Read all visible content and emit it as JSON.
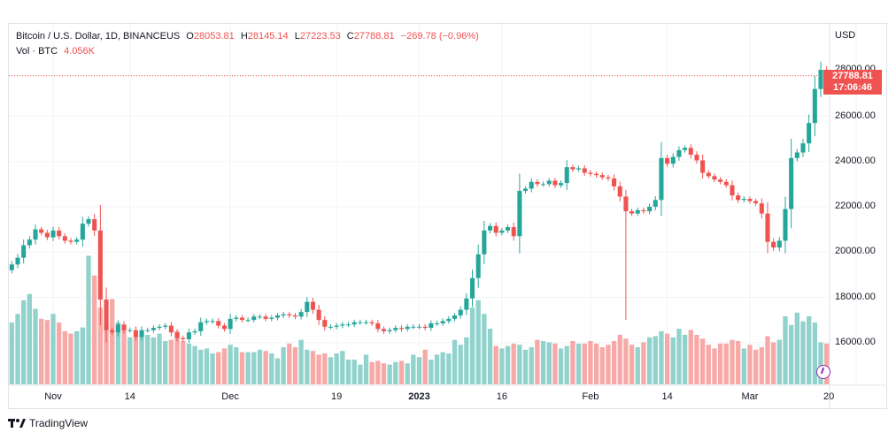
{
  "legend": {
    "symbol": "Bitcoin / U.S. Dollar, 1D, BINANCEUS",
    "open_label": "O",
    "open": "28053.81",
    "high_label": "H",
    "high": "28145.14",
    "low_label": "L",
    "low": "27223.53",
    "close_label": "C",
    "close": "27788.81",
    "change": "−269.78 (−0.96%)",
    "volume_label": "Vol · BTC",
    "volume": "4.056K"
  },
  "axis": {
    "currency": "USD"
  },
  "price_badge": {
    "price": "27788.81",
    "countdown": "17:06:46",
    "partially_hidden_label": "28000.00"
  },
  "footer": {
    "brand": "TradingView"
  },
  "colors": {
    "up": "#26a69a",
    "down": "#ef5350",
    "up_volume": "#92d2cc",
    "down_volume": "#f7a9a7",
    "grid": "#f0f3fa"
  },
  "chart_data": {
    "type": "candlestick",
    "title": "Bitcoin / U.S. Dollar, 1D, BINANCEUS",
    "ylabel": "USD",
    "ylim": [
      14000,
      29000
    ],
    "y_ticks": [
      "16000.00",
      "18000.00",
      "20000.00",
      "22000.00",
      "24000.00",
      "26000.00"
    ],
    "y_tick_values": [
      16000,
      18000,
      20000,
      22000,
      24000,
      26000
    ],
    "x_ticks": [
      "Nov",
      "14",
      "Dec",
      "19",
      "2023",
      "16",
      "Feb",
      "14",
      "Mar",
      "20"
    ],
    "x_tick_index": [
      7,
      20,
      37,
      55,
      69,
      83,
      98,
      111,
      125,
      143
    ],
    "x_tick_bold": [
      false,
      false,
      false,
      false,
      true,
      false,
      false,
      false,
      false,
      false
    ],
    "grid": true,
    "last_close": 27788.81,
    "close": [
      19450,
      19750,
      20300,
      20550,
      21000,
      20850,
      20650,
      20950,
      20700,
      20500,
      20450,
      20550,
      21250,
      21450,
      20950,
      17900,
      16550,
      16450,
      16800,
      16550,
      16550,
      16250,
      16550,
      16550,
      16650,
      16700,
      16750,
      16450,
      16200,
      16150,
      16450,
      16500,
      16900,
      16950,
      16950,
      16750,
      16600,
      17050,
      17100,
      17000,
      17000,
      17150,
      17150,
      17050,
      17100,
      17200,
      17250,
      17200,
      17150,
      17350,
      17800,
      17450,
      17000,
      16700,
      16700,
      16750,
      16800,
      16800,
      16900,
      16900,
      16900,
      16850,
      16600,
      16500,
      16550,
      16650,
      16600,
      16700,
      16700,
      16700,
      16650,
      16850,
      16850,
      16950,
      17050,
      17200,
      17450,
      17950,
      18850,
      19900,
      20950,
      21150,
      20850,
      20950,
      21100,
      20700,
      22700,
      22800,
      23100,
      23000,
      23000,
      23150,
      22950,
      23050,
      23750,
      23650,
      23700,
      23500,
      23450,
      23400,
      23300,
      23250,
      22900,
      22450,
      21800,
      21700,
      21850,
      21800,
      22000,
      22300,
      24150,
      23900,
      24200,
      24500,
      24600,
      24300,
      24050,
      23500,
      23350,
      23200,
      23100,
      22950,
      22500,
      22300,
      22350,
      22250,
      22150,
      21700,
      20450,
      20200,
      20500,
      21900,
      24150,
      24400,
      24800,
      25700,
      27200,
      28050,
      27788.81
    ],
    "volume": [
      250,
      285,
      340,
      365,
      305,
      265,
      260,
      285,
      250,
      215,
      205,
      215,
      230,
      520,
      440,
      310,
      245,
      345,
      250,
      230,
      190,
      195,
      200,
      200,
      190,
      205,
      175,
      180,
      215,
      175,
      165,
      155,
      140,
      145,
      125,
      130,
      145,
      160,
      150,
      130,
      130,
      130,
      140,
      135,
      125,
      105,
      150,
      165,
      150,
      180,
      140,
      135,
      120,
      125,
      110,
      125,
      135,
      100,
      100,
      80,
      120,
      90,
      95,
      85,
      80,
      90,
      95,
      85,
      120,
      110,
      140,
      100,
      120,
      130,
      125,
      180,
      160,
      190,
      310,
      340,
      285,
      225,
      155,
      145,
      155,
      165,
      160,
      140,
      150,
      180,
      175,
      170,
      165,
      145,
      155,
      175,
      165,
      165,
      175,
      165,
      150,
      160,
      175,
      200,
      185,
      160,
      150,
      170,
      190,
      195,
      215,
      205,
      190,
      225,
      200,
      220,
      200,
      185,
      160,
      145,
      165,
      165,
      180,
      175,
      145,
      160,
      140,
      150,
      195,
      170,
      180,
      275,
      240,
      290,
      255,
      275,
      250,
      170,
      165
    ]
  }
}
